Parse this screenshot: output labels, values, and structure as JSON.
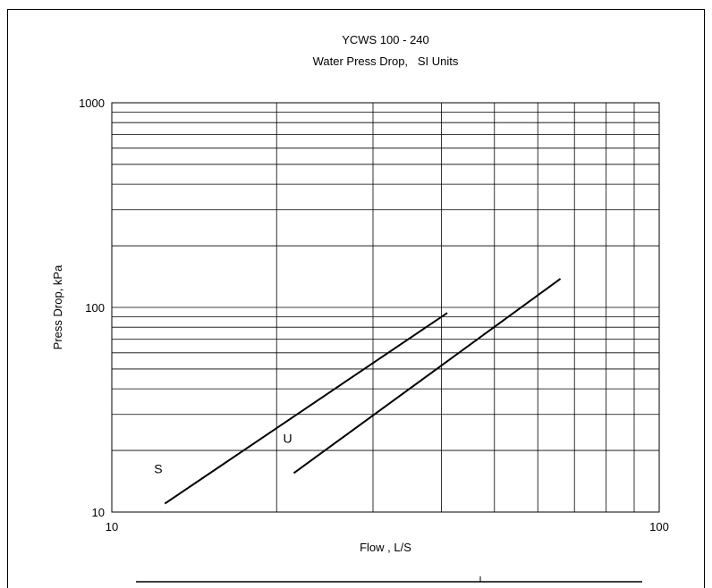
{
  "chart_data": {
    "type": "line",
    "title": "YCWS 100 - 240",
    "subtitle": "Water Press Drop,   SI Units",
    "xlabel": "Flow , L/S",
    "ylabel": "Press Drop, kPa",
    "x_scale": "log",
    "y_scale": "log",
    "xlim": [
      10,
      100
    ],
    "ylim": [
      10,
      1000
    ],
    "x_ticks": [
      "10",
      "100"
    ],
    "y_ticks": [
      "10",
      "100",
      "1000"
    ],
    "grid": true,
    "series": [
      {
        "name": "S",
        "x": [
          12.5,
          41
        ],
        "y": [
          11,
          94
        ]
      },
      {
        "name": "U",
        "x": [
          21.5,
          66
        ],
        "y": [
          15.5,
          138
        ]
      }
    ]
  },
  "colors": {
    "line": "#000000",
    "grid": "#000000",
    "background": "#ffffff"
  }
}
